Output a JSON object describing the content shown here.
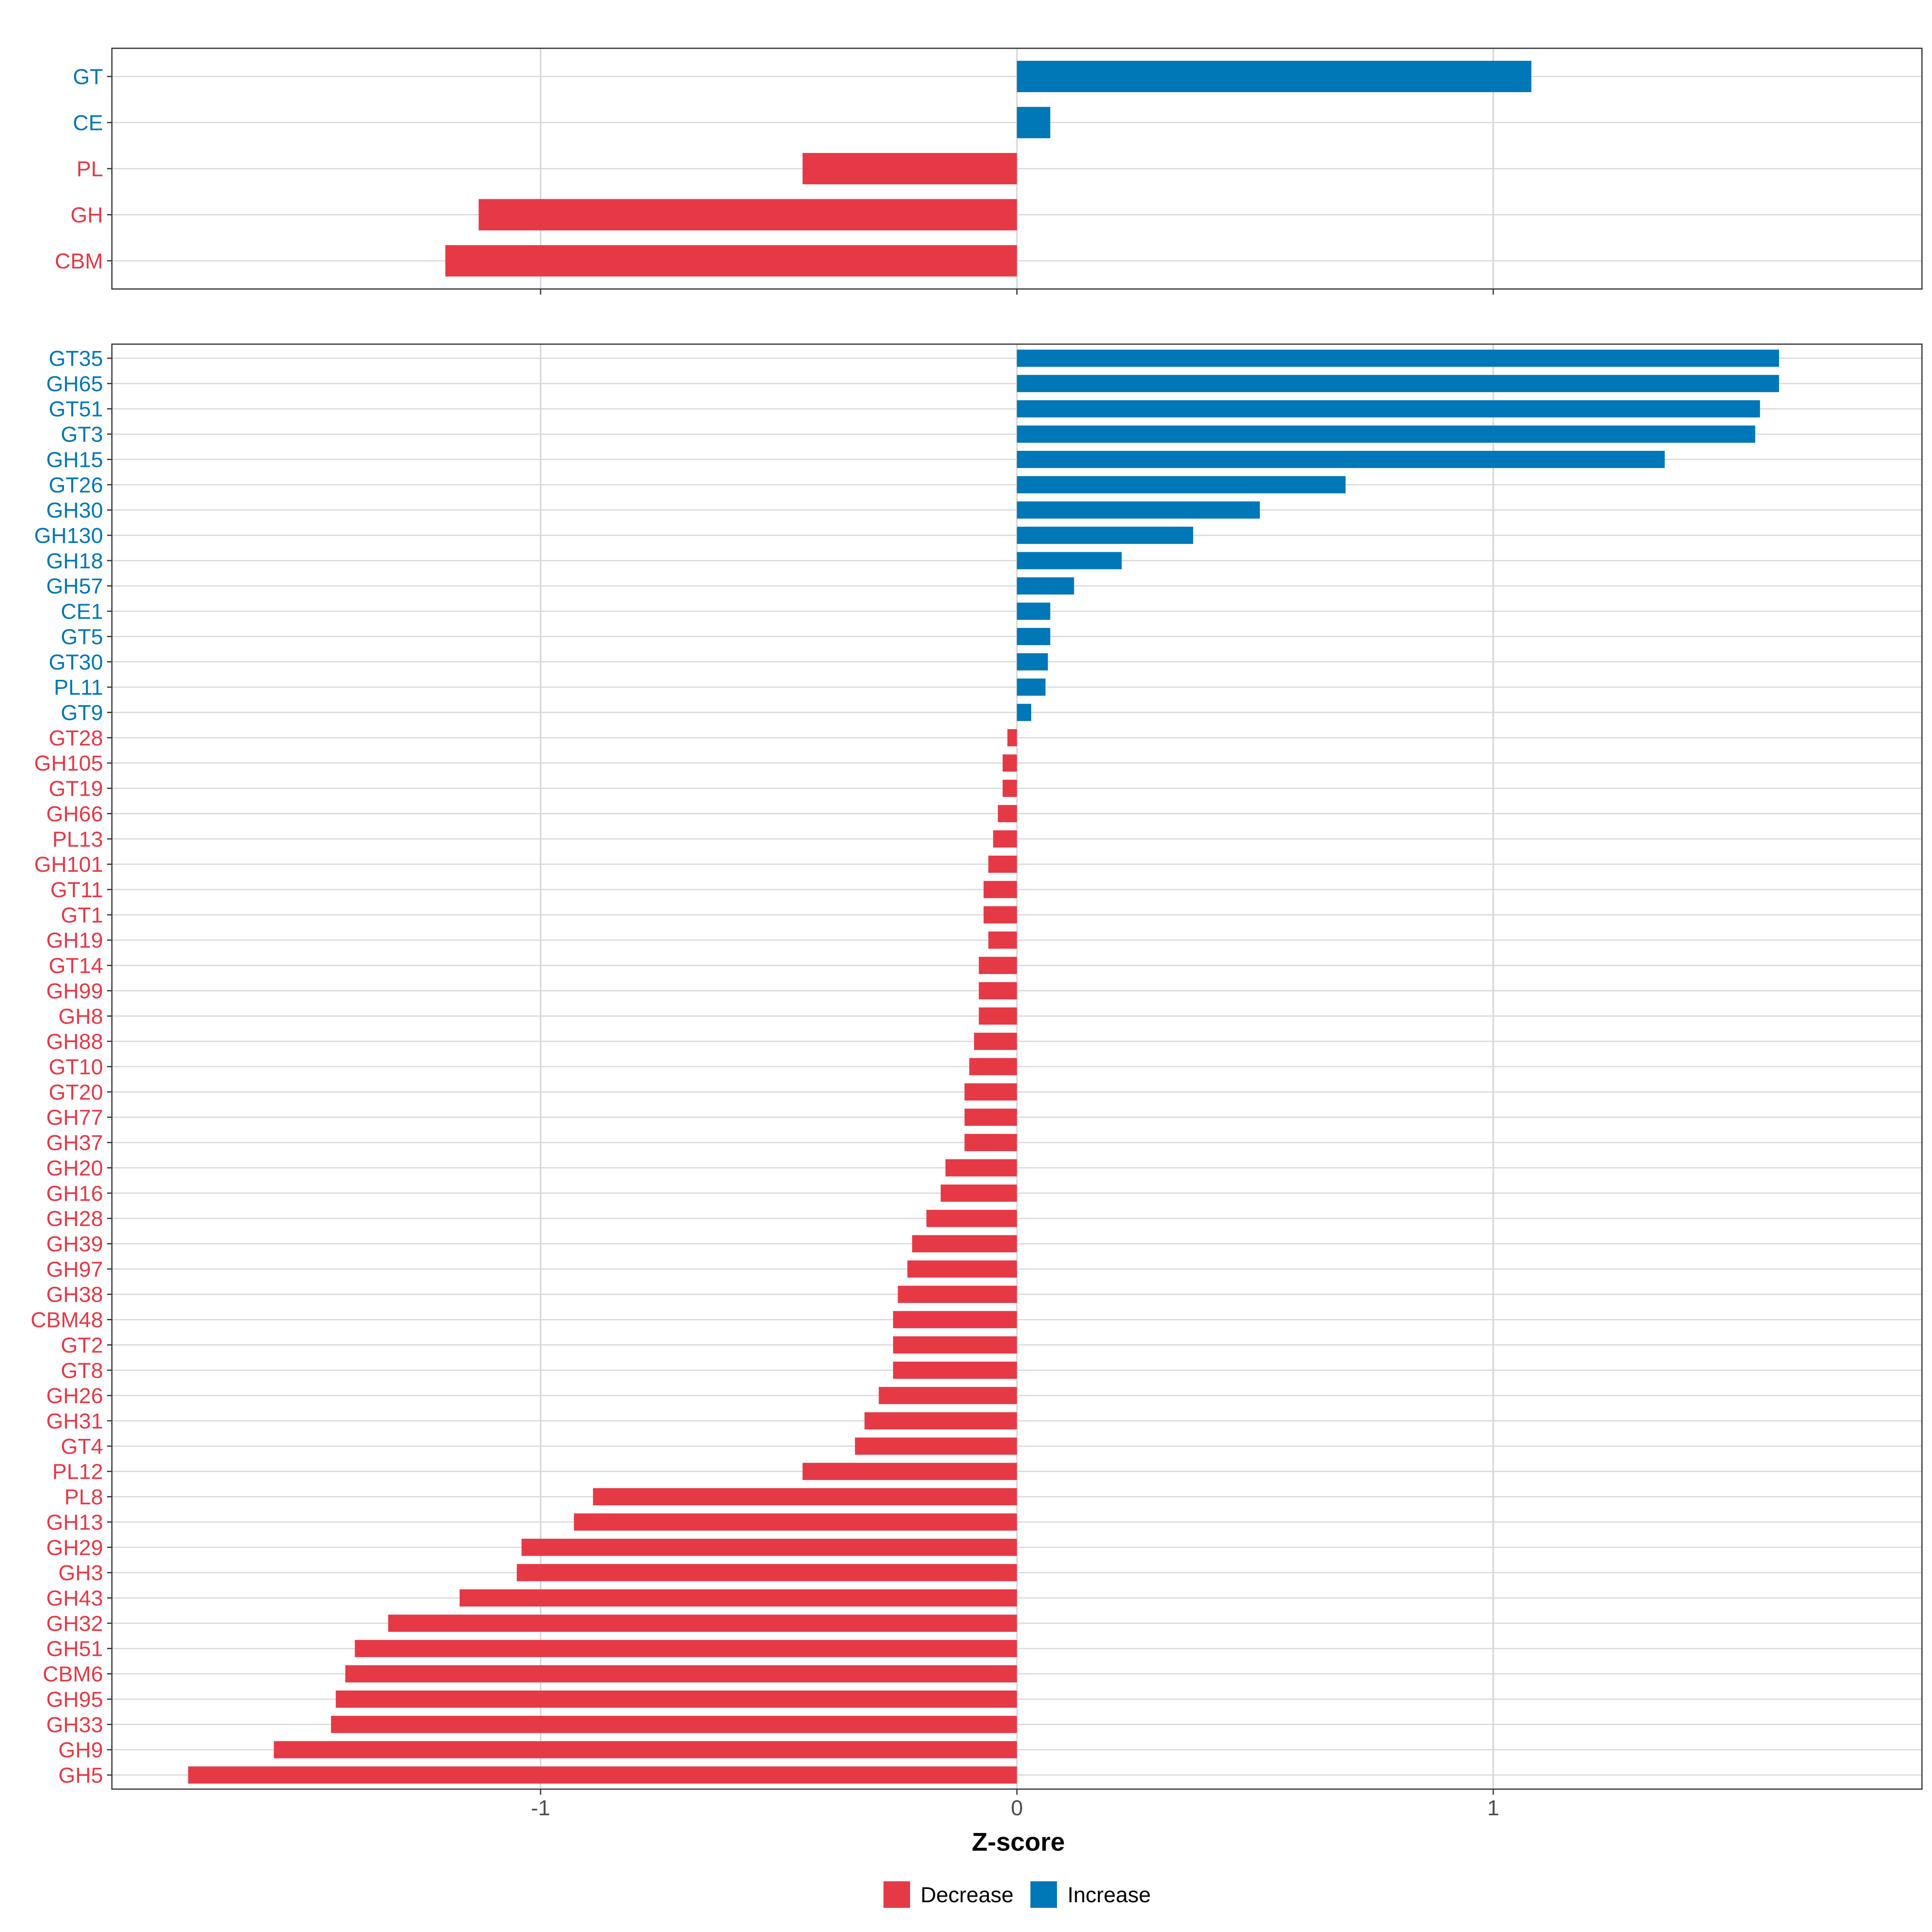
{
  "colors": {
    "Decrease": "#e63946",
    "Increase": "#0077b6",
    "grid": "#d9d9d9",
    "panel_border": "#333333"
  },
  "chart_data": [
    {
      "type": "bar",
      "orientation": "horizontal",
      "panel": "top",
      "xlabel": "",
      "xlim": [
        -1.9,
        1.9
      ],
      "categories": [
        "GT",
        "CE",
        "PL",
        "GH",
        "CBM"
      ],
      "values": [
        1.08,
        0.07,
        -0.45,
        -1.13,
        -1.2
      ],
      "groups": [
        "Increase",
        "Increase",
        "Decrease",
        "Decrease",
        "Decrease"
      ]
    },
    {
      "type": "bar",
      "orientation": "horizontal",
      "panel": "bottom",
      "xlabel": "Z-score",
      "xlim": [
        -1.9,
        1.9
      ],
      "xticks": [
        -1,
        0,
        1
      ],
      "xtick_labels": [
        "-1",
        "0",
        "1"
      ],
      "categories": [
        "GT35",
        "GH65",
        "GT51",
        "GT3",
        "GH15",
        "GT26",
        "GH30",
        "GH130",
        "GH18",
        "GH57",
        "CE1",
        "GT5",
        "GT30",
        "PL11",
        "GT9",
        "GT28",
        "GH105",
        "GT19",
        "GH66",
        "PL13",
        "GH101",
        "GT11",
        "GT1",
        "GH19",
        "GT14",
        "GH99",
        "GH8",
        "GH88",
        "GT10",
        "GT20",
        "GH77",
        "GH37",
        "GH20",
        "GH16",
        "GH28",
        "GH39",
        "GH97",
        "GH38",
        "CBM48",
        "GT2",
        "GT8",
        "GH26",
        "GH31",
        "GT4",
        "PL12",
        "PL8",
        "GH13",
        "GH29",
        "GH3",
        "GH43",
        "GH32",
        "GH51",
        "CBM6",
        "GH95",
        "GH33",
        "GH9",
        "GH5"
      ],
      "values": [
        1.6,
        1.6,
        1.56,
        1.55,
        1.36,
        0.69,
        0.51,
        0.37,
        0.22,
        0.12,
        0.07,
        0.07,
        0.065,
        0.06,
        0.03,
        -0.02,
        -0.03,
        -0.03,
        -0.04,
        -0.05,
        -0.06,
        -0.07,
        -0.07,
        -0.06,
        -0.08,
        -0.08,
        -0.08,
        -0.09,
        -0.1,
        -0.11,
        -0.11,
        -0.11,
        -0.15,
        -0.16,
        -0.19,
        -0.22,
        -0.23,
        -0.25,
        -0.26,
        -0.26,
        -0.26,
        -0.29,
        -0.32,
        -0.34,
        -0.45,
        -0.89,
        -0.93,
        -1.04,
        -1.05,
        -1.17,
        -1.32,
        -1.39,
        -1.41,
        -1.43,
        -1.44,
        -1.56,
        -1.74
      ],
      "groups": [
        "Increase",
        "Increase",
        "Increase",
        "Increase",
        "Increase",
        "Increase",
        "Increase",
        "Increase",
        "Increase",
        "Increase",
        "Increase",
        "Increase",
        "Increase",
        "Increase",
        "Increase",
        "Decrease",
        "Decrease",
        "Decrease",
        "Decrease",
        "Decrease",
        "Decrease",
        "Decrease",
        "Decrease",
        "Decrease",
        "Decrease",
        "Decrease",
        "Decrease",
        "Decrease",
        "Decrease",
        "Decrease",
        "Decrease",
        "Decrease",
        "Decrease",
        "Decrease",
        "Decrease",
        "Decrease",
        "Decrease",
        "Decrease",
        "Decrease",
        "Decrease",
        "Decrease",
        "Decrease",
        "Decrease",
        "Decrease",
        "Decrease",
        "Decrease",
        "Decrease",
        "Decrease",
        "Decrease",
        "Decrease",
        "Decrease",
        "Decrease",
        "Decrease",
        "Decrease",
        "Decrease",
        "Decrease",
        "Decrease"
      ]
    }
  ],
  "legend": {
    "position": "bottom",
    "items": [
      "Decrease",
      "Increase"
    ]
  }
}
